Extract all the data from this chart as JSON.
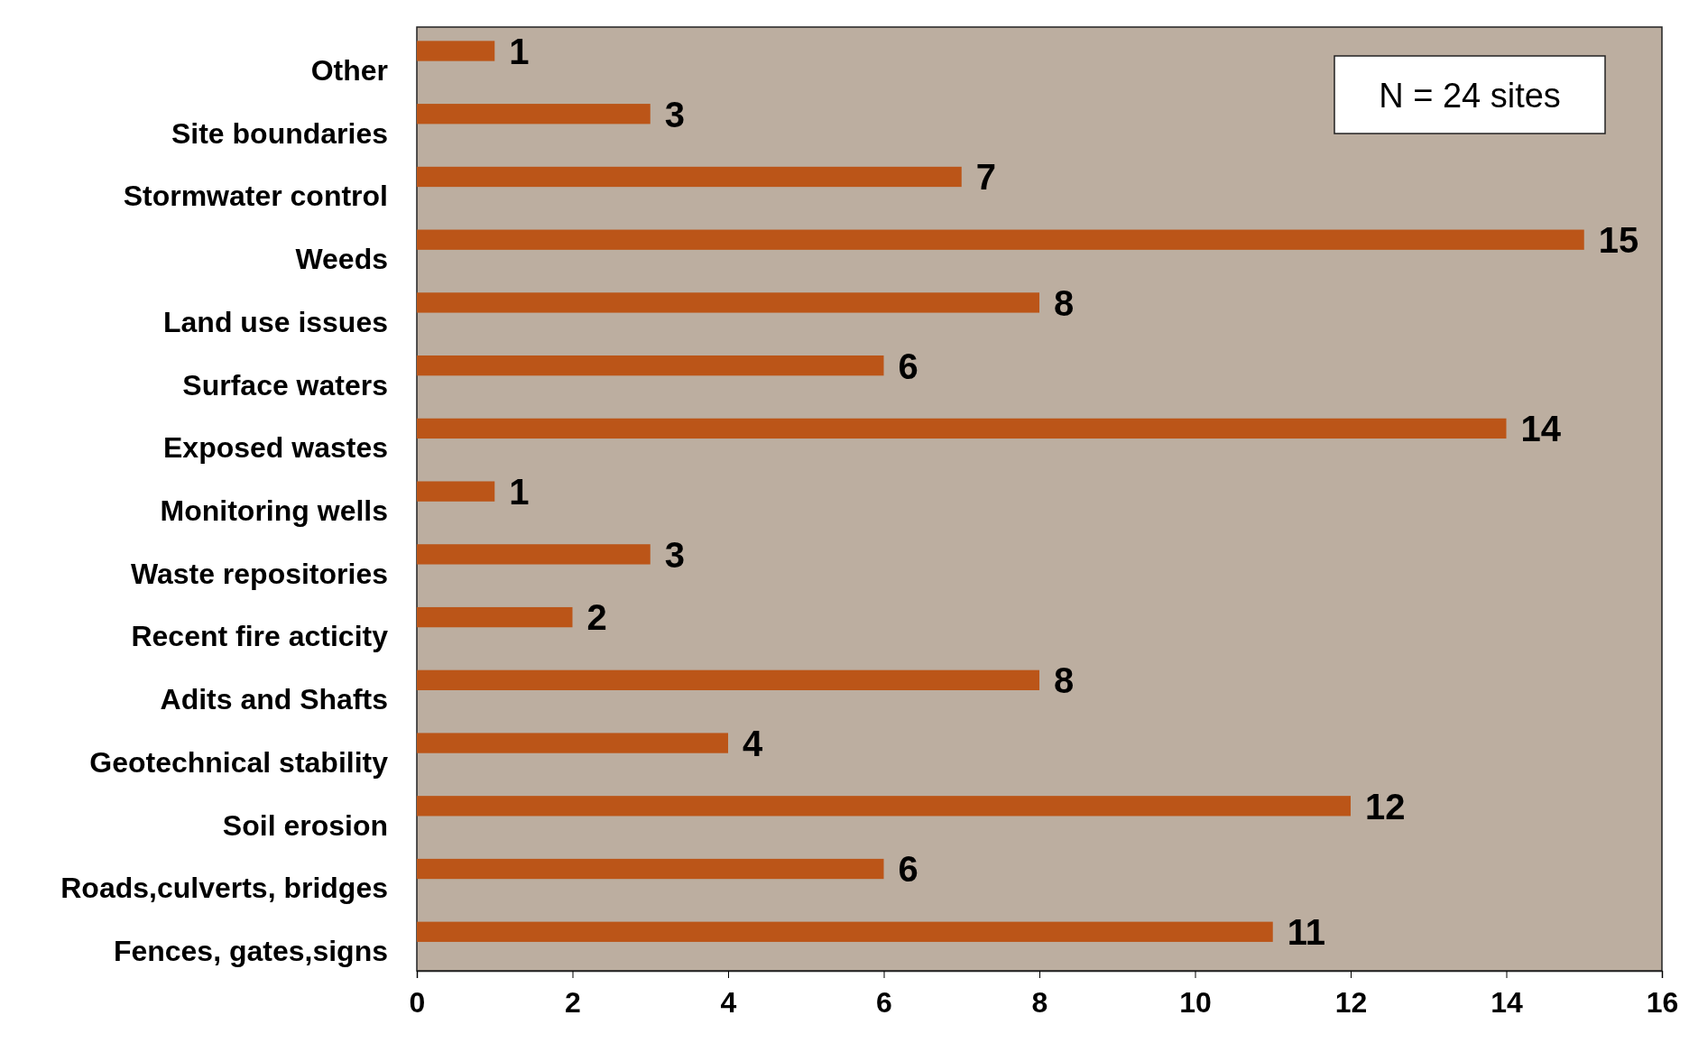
{
  "chart_data": {
    "type": "bar",
    "orientation": "horizontal",
    "categories": [
      "Other",
      "Site boundaries",
      "Stormwater control",
      "Weeds",
      "Land use issues",
      "Surface waters",
      "Exposed wastes",
      "Monitoring wells",
      "Waste repositories",
      "Recent fire acticity",
      "Adits and Shafts",
      "Geotechnical stability",
      "Soil erosion",
      "Roads,culverts, bridges",
      "Fences, gates,signs"
    ],
    "values": [
      1,
      3,
      7,
      15,
      8,
      6,
      14,
      1,
      3,
      2,
      8,
      4,
      12,
      6,
      11
    ],
    "color": "#bb5518",
    "xlim": [
      0,
      16
    ],
    "xticks": [
      0,
      2,
      4,
      6,
      8,
      10,
      12,
      14,
      16
    ],
    "data_labels": true,
    "annotations": [
      "N = 24 sites"
    ]
  }
}
